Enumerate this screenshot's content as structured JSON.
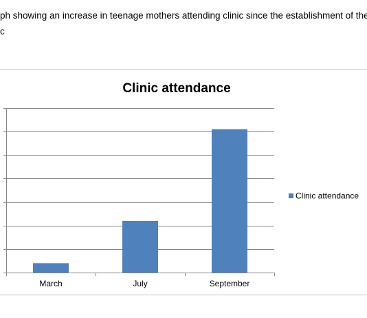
{
  "document": {
    "caption_line_1": "ph showing an increase in teenage mothers attending clinic since the establishment of the te",
    "caption_line_2": "c"
  },
  "chart_data": {
    "type": "bar",
    "title": "Clinic attendance",
    "categories": [
      "March",
      "July",
      "September"
    ],
    "series": [
      {
        "name": "Clinic attendance",
        "values": [
          4,
          22,
          61
        ],
        "color": "#4f81bd"
      }
    ],
    "ylim": [
      0,
      70
    ],
    "grid": true,
    "legend_position": "right"
  }
}
